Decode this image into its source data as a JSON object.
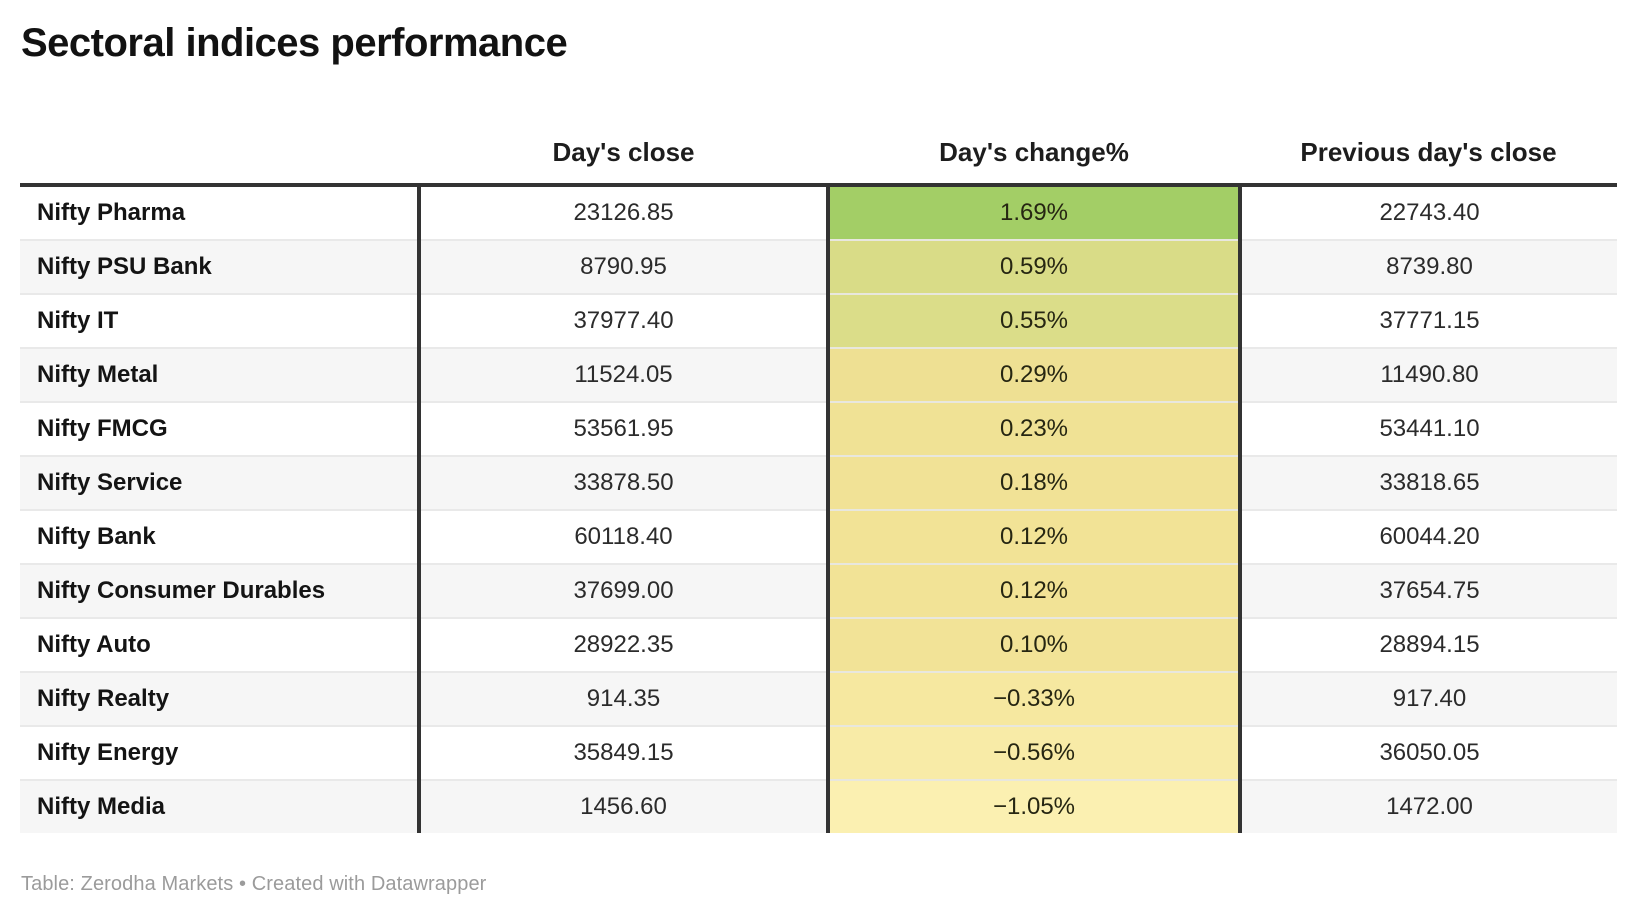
{
  "title": "Sectoral indices performance",
  "columns": {
    "label": "",
    "close": "Day's close",
    "change": "Day's change%",
    "prev": "Previous day's close"
  },
  "footer": "Table: Zerodha Markets • Created with Datawrapper",
  "colors": {
    "rule_dark": "#333333",
    "row_separator": "#e9e9e9",
    "row_alt_bg": "#f6f6f6",
    "footer_text": "#9b9b9b",
    "heatmap_max_green": "#a3ce66",
    "heatmap_min_yellow": "#fbf0b1"
  },
  "chart_data": {
    "type": "table",
    "title": "Sectoral indices performance",
    "columns": [
      "",
      "Day's close",
      "Day's change%",
      "Previous day's close"
    ],
    "heatmap_column": "Day's change%",
    "rows": [
      {
        "label": "Nifty Pharma",
        "close": "23126.85",
        "change": "1.69%",
        "change_value": 1.69,
        "prev": "22743.40",
        "change_bg": "#a3ce66"
      },
      {
        "label": "Nifty PSU Bank",
        "close": "8790.95",
        "change": "0.59%",
        "change_value": 0.59,
        "prev": "8739.80",
        "change_bg": "#d9dc87"
      },
      {
        "label": "Nifty IT",
        "close": "37977.40",
        "change": "0.55%",
        "change_value": 0.55,
        "prev": "37771.15",
        "change_bg": "#dbdd89"
      },
      {
        "label": "Nifty Metal",
        "close": "11524.05",
        "change": "0.29%",
        "change_value": 0.29,
        "prev": "11490.80",
        "change_bg": "#eee093"
      },
      {
        "label": "Nifty FMCG",
        "close": "53561.95",
        "change": "0.23%",
        "change_value": 0.23,
        "prev": "53441.10",
        "change_bg": "#f0e295"
      },
      {
        "label": "Nifty Service",
        "close": "33878.50",
        "change": "0.18%",
        "change_value": 0.18,
        "prev": "33818.65",
        "change_bg": "#f1e296"
      },
      {
        "label": "Nifty Bank",
        "close": "60118.40",
        "change": "0.12%",
        "change_value": 0.12,
        "prev": "60044.20",
        "change_bg": "#f2e396"
      },
      {
        "label": "Nifty Consumer Durables",
        "close": "37699.00",
        "change": "0.12%",
        "change_value": 0.12,
        "prev": "37654.75",
        "change_bg": "#f2e396"
      },
      {
        "label": "Nifty Auto",
        "close": "28922.35",
        "change": "0.10%",
        "change_value": 0.1,
        "prev": "28894.15",
        "change_bg": "#f2e397"
      },
      {
        "label": "Nifty Realty",
        "close": "914.35",
        "change": "−0.33%",
        "change_value": -0.33,
        "prev": "917.40",
        "change_bg": "#f6e8a0"
      },
      {
        "label": "Nifty Energy",
        "close": "35849.15",
        "change": "−0.56%",
        "change_value": -0.56,
        "prev": "36050.05",
        "change_bg": "#f8eba7"
      },
      {
        "label": "Nifty Media",
        "close": "1456.60",
        "change": "−1.05%",
        "change_value": -1.05,
        "prev": "1472.00",
        "change_bg": "#fbf0b1"
      }
    ]
  }
}
